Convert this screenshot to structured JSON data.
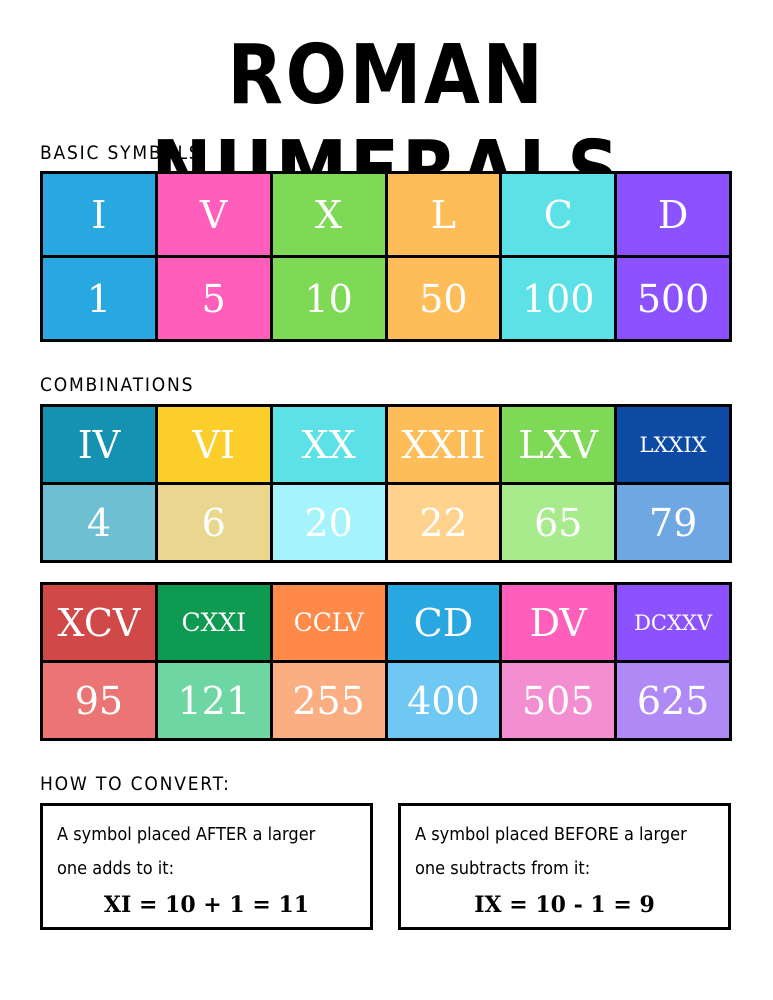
{
  "title": "ROMAN NUMERALS",
  "basic": {
    "label": "BASIC SYMBOLS",
    "symbols": [
      "I",
      "V",
      "X",
      "L",
      "C",
      "D"
    ],
    "values": [
      "1",
      "5",
      "10",
      "50",
      "100",
      "500"
    ],
    "colors": [
      "#29a7e1",
      "#ff5fbb",
      "#7ed957",
      "#ffbd59",
      "#5ce1e6",
      "#8c52ff"
    ]
  },
  "combinations": {
    "label": "COMBINATIONS",
    "row1": {
      "symbols": [
        "IV",
        "VI",
        "XX",
        "XXII",
        "LXV",
        "LXXIX"
      ],
      "values": [
        "4",
        "6",
        "20",
        "22",
        "65",
        "79"
      ],
      "top_colors": [
        "#1591b1",
        "#fbce2b",
        "#5ce1e6",
        "#ffbd59",
        "#7ed957",
        "#0d4aa3"
      ],
      "bottom_colors": [
        "#6fbfd2",
        "#e9d68f",
        "#a6f4fb",
        "#ffd28d",
        "#a8eb8c",
        "#6fa7e3"
      ]
    },
    "row2": {
      "symbols": [
        "XCV",
        "CXXI",
        "CCLV",
        "CD",
        "DV",
        "DCXXV"
      ],
      "values": [
        "95",
        "121",
        "255",
        "400",
        "505",
        "625"
      ],
      "top_colors": [
        "#d04848",
        "#0f9a52",
        "#ff8a4a",
        "#29a7e1",
        "#ff5fbb",
        "#8c52ff"
      ],
      "bottom_colors": [
        "#eb7474",
        "#6ed6a3",
        "#fbae82",
        "#6ec8f3",
        "#f38ed0",
        "#af89f5"
      ]
    }
  },
  "convert": {
    "label": "HOW TO CONVERT:",
    "box1": {
      "desc_line1": "A symbol placed AFTER a larger",
      "desc_line2": "one adds to it:",
      "equation": "XI = 10 + 1 = 11"
    },
    "box2": {
      "desc_line1": "A symbol placed BEFORE a larger",
      "desc_line2": "one subtracts from it:",
      "equation": "IX = 10 - 1 = 9"
    }
  }
}
